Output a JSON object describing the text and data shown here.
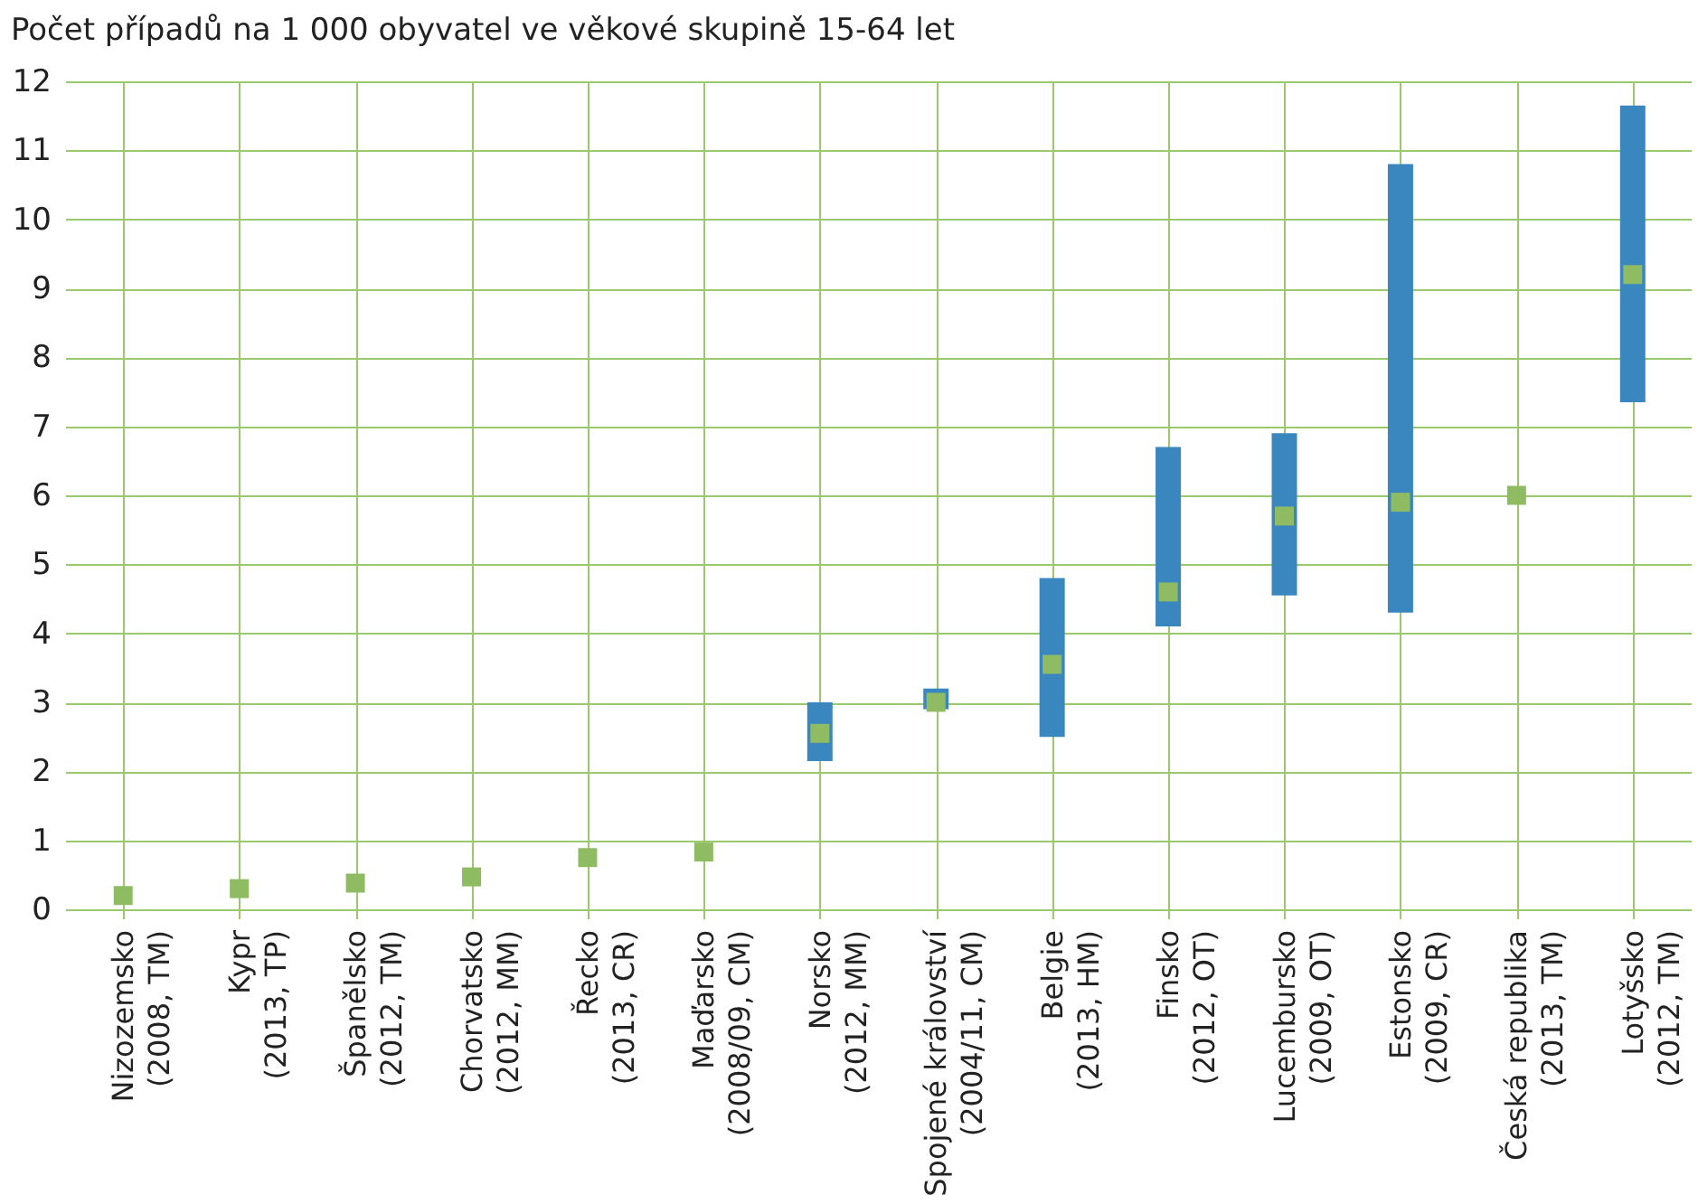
{
  "chart_data": {
    "type": "bar",
    "title": "Počet případů na 1 000 obyvatel ve věkové skupině 15-64 let",
    "categories": [
      "Nizozemsko\n(2008, TM)",
      "Kypr\n(2013, TP)",
      "Španělsko\n(2012, TM)",
      "Chorvatsko\n(2012, MM)",
      "Řecko\n(2013, CR)",
      "Maďarsko\n(2008/09, CM)",
      "Norsko\n(2012, MM)",
      "Spojené království\n(2004/11, CM)",
      "Belgie\n(2013, HM)",
      "Finsko\n(2012, OT)",
      "Lucembursko\n(2009, OT)",
      "Estonsko\n(2009, CR)",
      "Česká republika\n(2013, TM)",
      "Lotyšsko\n(2012, TM)"
    ],
    "series": [
      {
        "type": "bar",
        "color": "#3a87c0",
        "base": [
          null,
          null,
          null,
          null,
          null,
          null,
          2.15,
          2.9,
          2.5,
          4.1,
          4.55,
          4.3,
          null,
          7.35
        ],
        "values": [
          null,
          null,
          null,
          null,
          null,
          null,
          0.85,
          0.3,
          2.3,
          2.6,
          2.35,
          6.5,
          null,
          4.3
        ]
      },
      {
        "type": "scatter",
        "color": "#8fbc63",
        "marker": "square",
        "values": [
          0.2,
          0.3,
          0.38,
          0.47,
          0.75,
          0.83,
          2.55,
          3.0,
          3.55,
          4.6,
          5.7,
          5.9,
          6.0,
          9.2
        ]
      }
    ],
    "ylim": [
      0,
      12
    ],
    "yticks": [
      0,
      1,
      2,
      3,
      4,
      5,
      6,
      7,
      8,
      9,
      10,
      11,
      12
    ],
    "grid": true
  }
}
